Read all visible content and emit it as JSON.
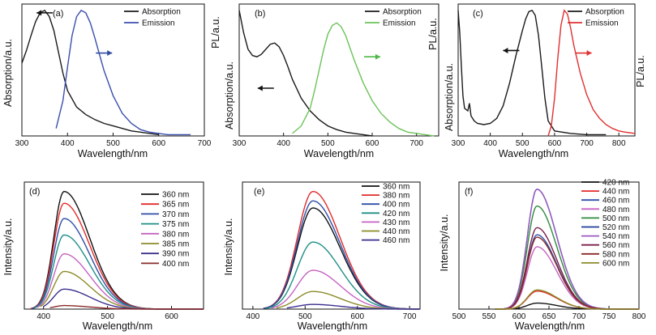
{
  "chart_data": [
    {
      "type": "line",
      "panel_label": "(a)",
      "xlabel": "Wavelength/nm",
      "ylabel": "Absorption/a.u.",
      "ylabel_right": "",
      "xlim": [
        300,
        700
      ],
      "xticks": [
        300,
        400,
        500,
        600,
        700
      ],
      "ylim": [
        0,
        1.05
      ],
      "legend": "top-right",
      "arrows": [
        {
          "side": "left",
          "color": "#111111",
          "x": 350,
          "y": 0.98
        },
        {
          "side": "right",
          "color": "#2e4da0",
          "x": 480,
          "y": 0.66
        }
      ],
      "series": [
        {
          "name": "Absorption",
          "color": "#1a1a1a",
          "x": [
            300,
            310,
            320,
            330,
            340,
            350,
            360,
            370,
            380,
            390,
            400,
            420,
            440,
            460,
            480,
            500,
            520,
            540,
            560,
            580,
            600
          ],
          "y": [
            0.58,
            0.68,
            0.8,
            0.91,
            0.98,
            1.0,
            0.95,
            0.84,
            0.67,
            0.5,
            0.36,
            0.23,
            0.17,
            0.13,
            0.1,
            0.08,
            0.06,
            0.04,
            0.03,
            0.02,
            0.01
          ]
        },
        {
          "name": "Emission",
          "color": "#3b4fae",
          "x": [
            375,
            390,
            400,
            410,
            420,
            430,
            440,
            450,
            460,
            470,
            480,
            500,
            520,
            540,
            560,
            580,
            600,
            620,
            640,
            660,
            670
          ],
          "y": [
            0.06,
            0.28,
            0.55,
            0.8,
            0.95,
            1.0,
            0.98,
            0.9,
            0.78,
            0.65,
            0.52,
            0.32,
            0.18,
            0.1,
            0.05,
            0.03,
            0.02,
            0.01,
            0.01,
            0.01,
            0.01
          ]
        }
      ]
    },
    {
      "type": "line",
      "panel_label": "(b)",
      "xlabel": "Wavelength/nm",
      "ylabel": "Absorption/a.u.",
      "ylabel_right": "",
      "ylabel_top": "PL/a.u.",
      "xlim": [
        300,
        750
      ],
      "xticks": [
        300,
        400,
        500,
        600,
        700
      ],
      "ylim": [
        0,
        1.05
      ],
      "legend": "top-right",
      "arrows": [
        {
          "side": "left",
          "color": "#111111",
          "x": 360,
          "y": 0.38
        },
        {
          "side": "right",
          "color": "#4cb848",
          "x": 600,
          "y": 0.63
        }
      ],
      "series": [
        {
          "name": "Absorption",
          "color": "#1a1a1a",
          "x": [
            300,
            310,
            320,
            330,
            340,
            350,
            360,
            370,
            380,
            390,
            400,
            410,
            420,
            440,
            460,
            480,
            500,
            520,
            540,
            560,
            580,
            600
          ],
          "y": [
            1.0,
            0.82,
            0.69,
            0.64,
            0.63,
            0.65,
            0.69,
            0.73,
            0.74,
            0.71,
            0.64,
            0.55,
            0.45,
            0.3,
            0.2,
            0.13,
            0.08,
            0.05,
            0.03,
            0.02,
            0.01,
            0.0
          ]
        },
        {
          "name": "Emission",
          "color": "#6cc35a",
          "x": [
            420,
            440,
            460,
            470,
            480,
            490,
            500,
            510,
            520,
            530,
            540,
            560,
            580,
            600,
            620,
            640,
            660,
            680,
            700,
            720,
            740
          ],
          "y": [
            0.02,
            0.08,
            0.22,
            0.36,
            0.52,
            0.68,
            0.81,
            0.88,
            0.9,
            0.87,
            0.8,
            0.6,
            0.42,
            0.28,
            0.18,
            0.11,
            0.06,
            0.03,
            0.02,
            0.01,
            0.0
          ]
        }
      ]
    },
    {
      "type": "line",
      "panel_label": "(c)",
      "xlabel": "Wavelength/nm",
      "ylabel": "Absorption/a.u.",
      "ylabel_right": "PL/a.u.",
      "ylabel_top": "PL/a.u.",
      "xlim": [
        300,
        850
      ],
      "xticks": [
        300,
        400,
        500,
        600,
        700,
        800
      ],
      "ylim": [
        0,
        1.05
      ],
      "legend": "top-right",
      "arrows": [
        {
          "side": "left",
          "color": "#111111",
          "x": 465,
          "y": 0.68
        },
        {
          "side": "right",
          "color": "#e03030",
          "x": 690,
          "y": 0.66
        }
      ],
      "series": [
        {
          "name": "Absorption",
          "color": "#1a1a1a",
          "x": [
            300,
            305,
            310,
            315,
            320,
            330,
            335,
            340,
            350,
            360,
            380,
            400,
            420,
            440,
            460,
            480,
            500,
            510,
            520,
            530,
            540,
            550,
            560,
            570,
            580,
            600,
            650,
            700,
            760
          ],
          "y": [
            1.0,
            0.82,
            0.55,
            0.32,
            0.22,
            0.2,
            0.26,
            0.16,
            0.12,
            0.1,
            0.09,
            0.1,
            0.14,
            0.24,
            0.42,
            0.64,
            0.84,
            0.93,
            0.99,
            1.0,
            0.96,
            0.8,
            0.55,
            0.3,
            0.12,
            0.04,
            0.02,
            0.01,
            0.01
          ]
        },
        {
          "name": "Emission",
          "color": "#e03030",
          "x": [
            580,
            590,
            600,
            610,
            620,
            630,
            640,
            650,
            660,
            680,
            700,
            720,
            740,
            760,
            780,
            800,
            820,
            850
          ],
          "y": [
            0.0,
            0.08,
            0.3,
            0.62,
            0.88,
            1.0,
            0.97,
            0.86,
            0.72,
            0.5,
            0.33,
            0.21,
            0.14,
            0.09,
            0.06,
            0.04,
            0.03,
            0.02
          ]
        }
      ]
    },
    {
      "type": "line",
      "panel_label": "(d)",
      "xlabel": "Wavelength/nm",
      "ylabel": "Intensity/a.u.",
      "xlim": [
        370,
        650
      ],
      "xticks": [
        400,
        500,
        600
      ],
      "ylim": [
        0,
        1.08
      ],
      "legend": "top-right",
      "peak_model": {
        "center": 432,
        "sigma_left": 16,
        "sigma_right": 40
      },
      "series": [
        {
          "name": "360 nm",
          "color": "#111111",
          "start": 380,
          "peak": 1.0
        },
        {
          "name": "365 nm",
          "color": "#e32b2b",
          "start": 380,
          "peak": 0.9
        },
        {
          "name": "370 nm",
          "color": "#2d4fa8",
          "start": 382,
          "peak": 0.77
        },
        {
          "name": "375 nm",
          "color": "#1f8f86",
          "start": 385,
          "peak": 0.63
        },
        {
          "name": "380 nm",
          "color": "#c563c2",
          "start": 390,
          "peak": 0.47
        },
        {
          "name": "385 nm",
          "color": "#8b8b2a",
          "start": 395,
          "peak": 0.32
        },
        {
          "name": "390 nm",
          "color": "#3a2f8f",
          "start": 400,
          "peak": 0.17
        },
        {
          "name": "400 nm",
          "color": "#8b2a2a",
          "start": 410,
          "peak": 0.03
        }
      ]
    },
    {
      "type": "line",
      "panel_label": "(e)",
      "xlabel": "Wavelength/nm",
      "ylabel": "Intensity/a.u.",
      "xlim": [
        380,
        720
      ],
      "xticks": [
        400,
        500,
        600,
        700
      ],
      "ylim": [
        0,
        1.08
      ],
      "legend": "top-right",
      "peak_model": {
        "center": 515,
        "sigma_left": 30,
        "sigma_right": 52
      },
      "series": [
        {
          "name": "360 nm",
          "color": "#111111",
          "start": 420,
          "peak": 0.86
        },
        {
          "name": "380 nm",
          "color": "#e32b2b",
          "start": 420,
          "peak": 1.0
        },
        {
          "name": "400 nm",
          "color": "#2d4fa8",
          "start": 420,
          "peak": 0.92
        },
        {
          "name": "420 nm",
          "color": "#1f8f86",
          "start": 425,
          "peak": 0.57
        },
        {
          "name": "430 nm",
          "color": "#c563c2",
          "start": 435,
          "peak": 0.33
        },
        {
          "name": "440 nm",
          "color": "#8b8b2a",
          "start": 445,
          "peak": 0.15
        },
        {
          "name": "460 nm",
          "color": "#3a2f8f",
          "start": 465,
          "peak": 0.04
        }
      ]
    },
    {
      "type": "line",
      "panel_label": "(f)",
      "xlabel": "Wavelength/nm",
      "ylabel": "Intensity/a.u.",
      "xlim": [
        500,
        800
      ],
      "xticks": [
        500,
        550,
        600,
        650,
        700,
        750,
        800
      ],
      "ylim": [
        0,
        1.06
      ],
      "legend": "top-right",
      "peak_model": {
        "center": 630,
        "sigma_left": 16,
        "sigma_right": 33
      },
      "series": [
        {
          "name": "420 nm",
          "color": "#111111",
          "start": 560,
          "peak": 0.05
        },
        {
          "name": "440 nm",
          "color": "#e32b2b",
          "start": 560,
          "peak": 0.15
        },
        {
          "name": "460 nm",
          "color": "#2d4fa8",
          "start": 560,
          "peak": 0.62
        },
        {
          "name": "480 nm",
          "color": "#c563c2",
          "start": 560,
          "peak": 0.52
        },
        {
          "name": "500 nm",
          "color": "#2e8b3e",
          "start": 560,
          "peak": 0.86
        },
        {
          "name": "520 nm",
          "color": "#1f3f9a",
          "start": 560,
          "peak": 1.0
        },
        {
          "name": "540 nm",
          "color": "#9c5ac0",
          "start": 560,
          "peak": 1.0
        },
        {
          "name": "560 nm",
          "color": "#7a1f4a",
          "start": 560,
          "peak": 0.68
        },
        {
          "name": "580 nm",
          "color": "#8b2a2a",
          "start": 560,
          "peak": 0.6
        },
        {
          "name": "600 nm",
          "color": "#8b8b2a",
          "start": 560,
          "peak": 0.16
        }
      ]
    }
  ]
}
